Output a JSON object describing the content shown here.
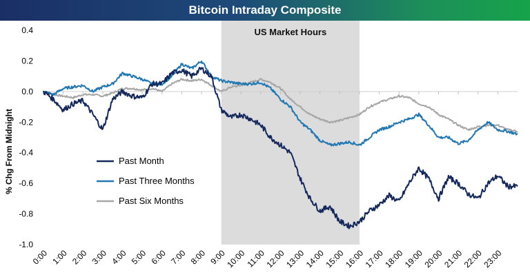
{
  "chart_data": {
    "type": "line",
    "title": "Bitcoin Intraday Composite",
    "ylabel": "% Chg From Midnight",
    "xlabel": "",
    "ylim": [
      -1.0,
      0.4
    ],
    "yticks": [
      "0.4",
      "0.2",
      "0.0",
      "-0.2",
      "-0.4",
      "-0.6",
      "-0.8",
      "-1.0"
    ],
    "ytick_values": [
      0.4,
      0.2,
      0.0,
      -0.2,
      -0.4,
      -0.6,
      -0.8,
      -1.0
    ],
    "xticks": [
      "0:00",
      "1:00",
      "2:00",
      "3:00",
      "4:00",
      "5:00",
      "6:00",
      "7:00",
      "8:00",
      "9:00",
      "10:00",
      "11:00",
      "12:00",
      "13:00",
      "14:00",
      "15:00",
      "16:00",
      "17:00",
      "18:00",
      "19:00",
      "20:00",
      "21:00",
      "22:00",
      "23:00"
    ],
    "shaded_region": {
      "label": "US Market Hours",
      "x_start": 9.0,
      "x_end": 16.0,
      "color": "#dcdcdc"
    },
    "legend_position": "left-center",
    "grid": false,
    "series": [
      {
        "name": "Past Month",
        "color": "#14285c",
        "x": [
          0,
          0.5,
          1,
          1.5,
          2,
          2.5,
          3,
          3.5,
          4,
          4.5,
          5,
          5.5,
          6,
          6.5,
          7,
          7.5,
          8,
          8.5,
          9,
          9.5,
          10,
          10.5,
          11,
          11.5,
          12,
          12.5,
          13,
          13.5,
          14,
          14.5,
          15,
          15.5,
          16,
          16.5,
          17,
          17.5,
          18,
          18.5,
          19,
          19.5,
          20,
          20.5,
          21,
          21.5,
          22,
          22.5,
          23,
          23.5,
          24
        ],
        "values": [
          0.0,
          -0.05,
          -0.12,
          -0.08,
          -0.06,
          -0.15,
          -0.25,
          -0.05,
          0.0,
          -0.03,
          -0.04,
          0.05,
          0.05,
          0.12,
          0.14,
          0.1,
          0.15,
          0.1,
          -0.12,
          -0.17,
          -0.15,
          -0.18,
          -0.22,
          -0.3,
          -0.35,
          -0.4,
          -0.57,
          -0.7,
          -0.78,
          -0.75,
          -0.85,
          -0.88,
          -0.85,
          -0.78,
          -0.74,
          -0.68,
          -0.72,
          -0.6,
          -0.5,
          -0.57,
          -0.7,
          -0.56,
          -0.6,
          -0.67,
          -0.7,
          -0.6,
          -0.55,
          -0.62,
          -0.62
        ]
      },
      {
        "name": "Past Three Months",
        "color": "#1f77b4",
        "x": [
          0,
          0.5,
          1,
          1.5,
          2,
          2.5,
          3,
          3.5,
          4,
          4.5,
          5,
          5.5,
          6,
          6.5,
          7,
          7.5,
          8,
          8.5,
          9,
          9.5,
          10,
          10.5,
          11,
          11.5,
          12,
          12.5,
          13,
          13.5,
          14,
          14.5,
          15,
          15.5,
          16,
          16.5,
          17,
          17.5,
          18,
          18.5,
          19,
          19.5,
          20,
          20.5,
          21,
          21.5,
          22,
          22.5,
          23,
          23.5,
          24
        ],
        "values": [
          0.0,
          -0.02,
          0.02,
          0.03,
          0.04,
          0.0,
          0.03,
          0.05,
          0.12,
          0.1,
          0.08,
          0.05,
          0.05,
          0.1,
          0.18,
          0.15,
          0.2,
          0.1,
          0.07,
          0.06,
          0.05,
          0.05,
          0.06,
          0.02,
          -0.05,
          -0.1,
          -0.2,
          -0.25,
          -0.32,
          -0.35,
          -0.34,
          -0.33,
          -0.35,
          -0.3,
          -0.25,
          -0.23,
          -0.2,
          -0.18,
          -0.15,
          -0.22,
          -0.3,
          -0.3,
          -0.34,
          -0.32,
          -0.25,
          -0.2,
          -0.25,
          -0.26,
          -0.28
        ]
      },
      {
        "name": "Past Six Months",
        "color": "#a6a6a6",
        "x": [
          0,
          0.5,
          1,
          1.5,
          2,
          2.5,
          3,
          3.5,
          4,
          4.5,
          5,
          5.5,
          6,
          6.5,
          7,
          7.5,
          8,
          8.5,
          9,
          9.5,
          10,
          10.5,
          11,
          11.5,
          12,
          12.5,
          13,
          13.5,
          14,
          14.5,
          15,
          15.5,
          16,
          16.5,
          17,
          17.5,
          18,
          18.5,
          19,
          19.5,
          20,
          20.5,
          21,
          21.5,
          22,
          22.5,
          23,
          23.5,
          24
        ],
        "values": [
          0.0,
          -0.02,
          -0.03,
          -0.04,
          -0.02,
          -0.02,
          -0.03,
          -0.01,
          0.02,
          0.02,
          0.01,
          0.02,
          0.0,
          0.05,
          0.08,
          0.07,
          0.08,
          0.04,
          0.0,
          0.03,
          0.04,
          0.06,
          0.08,
          0.06,
          0.02,
          -0.05,
          -0.1,
          -0.15,
          -0.18,
          -0.2,
          -0.19,
          -0.17,
          -0.15,
          -0.1,
          -0.07,
          -0.05,
          -0.03,
          -0.04,
          -0.08,
          -0.1,
          -0.15,
          -0.18,
          -0.22,
          -0.25,
          -0.23,
          -0.22,
          -0.22,
          -0.25,
          -0.26
        ]
      }
    ]
  }
}
